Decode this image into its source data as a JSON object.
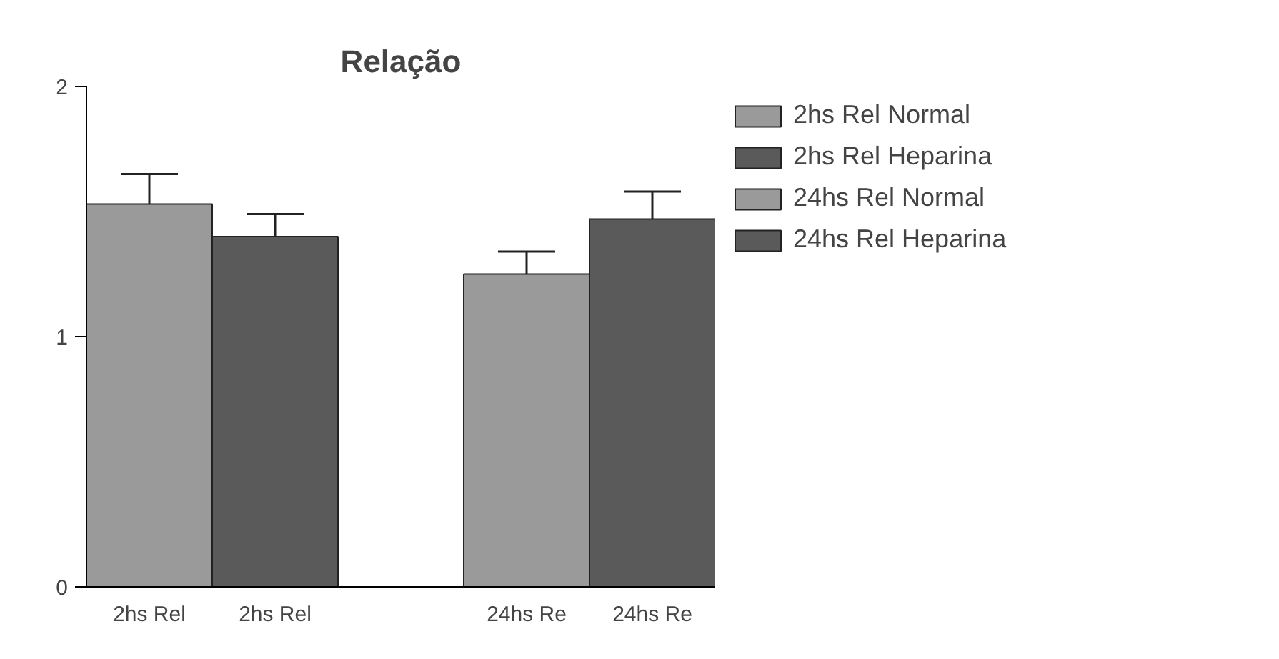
{
  "chart_data": {
    "type": "bar",
    "title": "Relação",
    "categories": [
      "2hs Rel",
      "2hs Rel",
      null,
      "24hs Re",
      "24hs Re"
    ],
    "series": [
      {
        "name": "2hs Rel Normal",
        "color": "#9a9a9a",
        "values": [
          1.53,
          null,
          null,
          null,
          null
        ],
        "errors": [
          [
            1.53,
            1.65
          ],
          null,
          null,
          null,
          null
        ]
      },
      {
        "name": "2hs Rel Heparina",
        "color": "#5a5a5a",
        "values": [
          null,
          1.4,
          null,
          null,
          null
        ],
        "errors": [
          null,
          [
            1.4,
            1.49
          ],
          null,
          null,
          null
        ]
      },
      {
        "name": "24hs Rel Normal",
        "color": "#9a9a9a",
        "values": [
          null,
          null,
          null,
          1.25,
          null
        ],
        "errors": [
          null,
          null,
          null,
          [
            1.25,
            1.34
          ],
          null
        ]
      },
      {
        "name": "24hs Rel Heparina",
        "color": "#5a5a5a",
        "values": [
          null,
          null,
          null,
          null,
          1.47
        ],
        "errors": [
          null,
          null,
          null,
          null,
          [
            1.47,
            1.58
          ]
        ]
      }
    ],
    "ylim": [
      0,
      2
    ],
    "yticks": [
      0,
      1,
      2
    ],
    "grid": false,
    "legend": "right"
  }
}
